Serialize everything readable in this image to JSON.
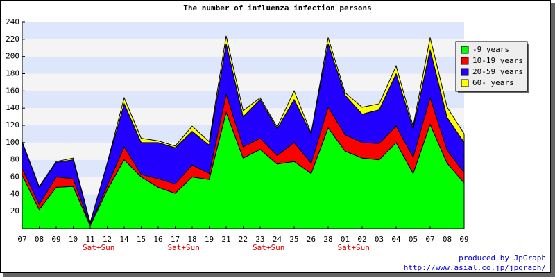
{
  "chart_data": {
    "type": "stacked_area",
    "title": "The number of influenza infection persons",
    "categories": [
      "07",
      "08",
      "09",
      "10",
      "11",
      "12",
      "14",
      "15",
      "16",
      "17",
      "18",
      "19",
      "21",
      "22",
      "23",
      "24",
      "25",
      "26",
      "28",
      "01",
      "02",
      "03",
      "04",
      "05",
      "07",
      "08",
      "09"
    ],
    "x_sublabels": [
      null,
      null,
      null,
      null,
      "Sat+Sun",
      null,
      null,
      null,
      null,
      "Sat+Sun",
      null,
      null,
      null,
      null,
      "Sat+Sun",
      null,
      null,
      null,
      null,
      "Sat+Sun",
      null,
      null,
      null,
      null,
      null,
      null,
      null
    ],
    "series": [
      {
        "name": "-9 years",
        "color": "#00ff00",
        "values": [
          62,
          22,
          48,
          49,
          3,
          45,
          80,
          60,
          48,
          41,
          60,
          57,
          135,
          82,
          92,
          75,
          78,
          64,
          117,
          90,
          82,
          80,
          100,
          64,
          121,
          76,
          53
        ]
      },
      {
        "name": "10-19 years",
        "color": "#ff0000",
        "values": [
          8,
          6,
          12,
          9,
          1,
          5,
          15,
          3,
          10,
          11,
          14,
          7,
          21,
          13,
          13,
          10,
          22,
          12,
          24,
          19,
          18,
          19,
          19,
          19,
          31,
          15,
          12
        ]
      },
      {
        "name": "20-59 years",
        "color": "#2200ff",
        "values": [
          30,
          20,
          17,
          22,
          2,
          25,
          50,
          37,
          42,
          42,
          39,
          33,
          59,
          35,
          45,
          31,
          50,
          34,
          74,
          46,
          33,
          39,
          61,
          33,
          56,
          38,
          35
        ]
      },
      {
        "name": "60- years",
        "color": "#ffff00",
        "values": [
          1,
          1,
          1,
          2,
          1,
          1,
          7,
          5,
          2,
          2,
          6,
          4,
          9,
          7,
          2,
          2,
          10,
          1,
          7,
          3,
          8,
          7,
          9,
          3,
          14,
          12,
          10
        ]
      }
    ],
    "ylim": [
      0,
      240
    ],
    "yticks": [
      20,
      40,
      60,
      80,
      100,
      120,
      140,
      160,
      180,
      200,
      220,
      240
    ],
    "legend": "upper right",
    "credits": [
      "produced by JpGraph",
      "http://www.asial.co.jp/jpgraph/"
    ]
  }
}
